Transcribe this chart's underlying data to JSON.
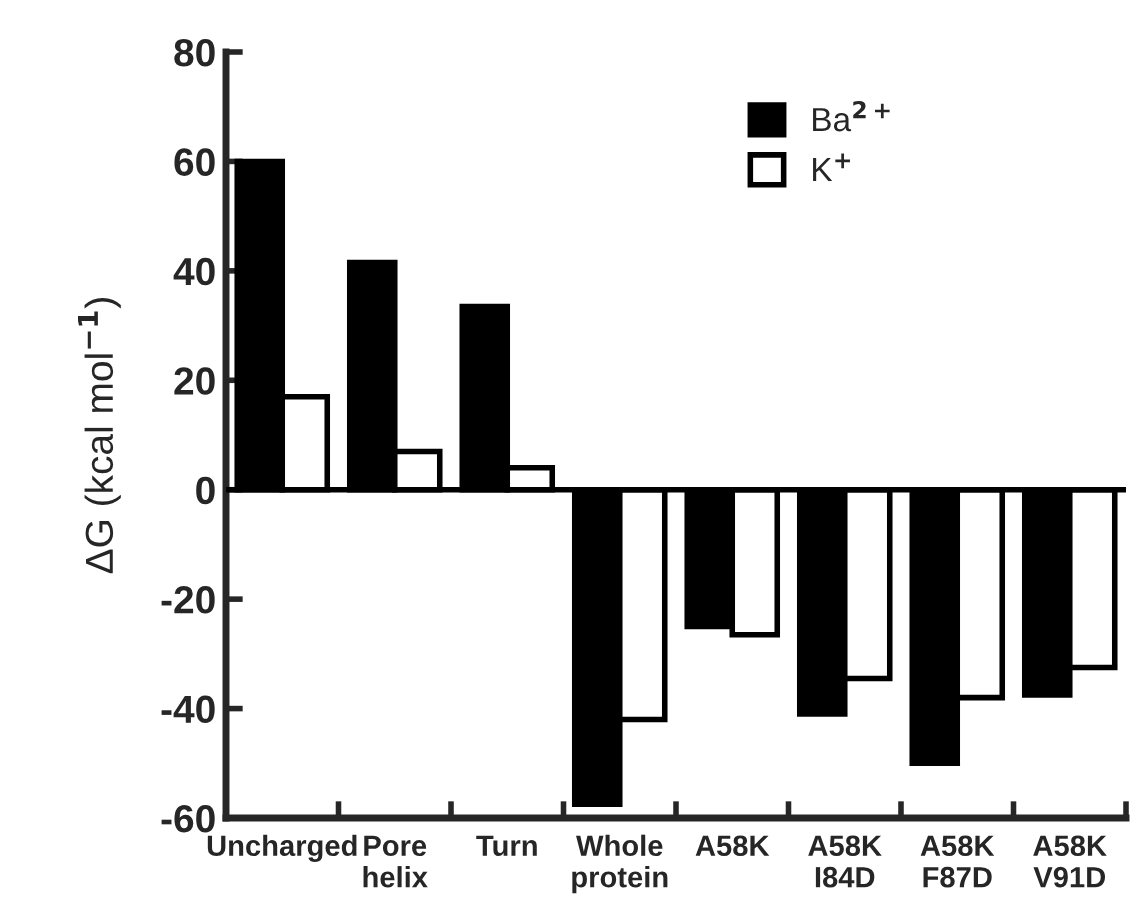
{
  "chart_data": {
    "type": "bar",
    "ylabel": "ΔG (kcal mol$^{−1}$)",
    "categories": [
      "Uncharged",
      "Pore\nhelix",
      "Turn",
      "Whole\nprotein",
      "A58K",
      "A58K\nI84D",
      "A58K\nF87D",
      "A58K\nV91D"
    ],
    "series": [
      {
        "name": "Ba$^{2+}$",
        "color": "#000000",
        "values": [
          60,
          41.5,
          33.5,
          -57.5,
          -25,
          -41,
          -50,
          -37.5
        ]
      },
      {
        "name": "K$^{+}$",
        "color": "#ffffff",
        "values": [
          17,
          7,
          4,
          -42,
          -26.5,
          -34.5,
          -38,
          -32.5
        ]
      }
    ],
    "ylim": [
      -60,
      80
    ],
    "yticks": [
      {
        "value": -60,
        "label": "-60"
      },
      {
        "value": -40,
        "label": "-40"
      },
      {
        "value": -20,
        "label": "-20"
      },
      0,
      20,
      40,
      60,
      80
    ],
    "ref_lines": [
      {
        "axis": "y",
        "value": 0,
        "label": null,
        "color": "#000000"
      }
    ],
    "grid": false,
    "legend": "top right"
  }
}
